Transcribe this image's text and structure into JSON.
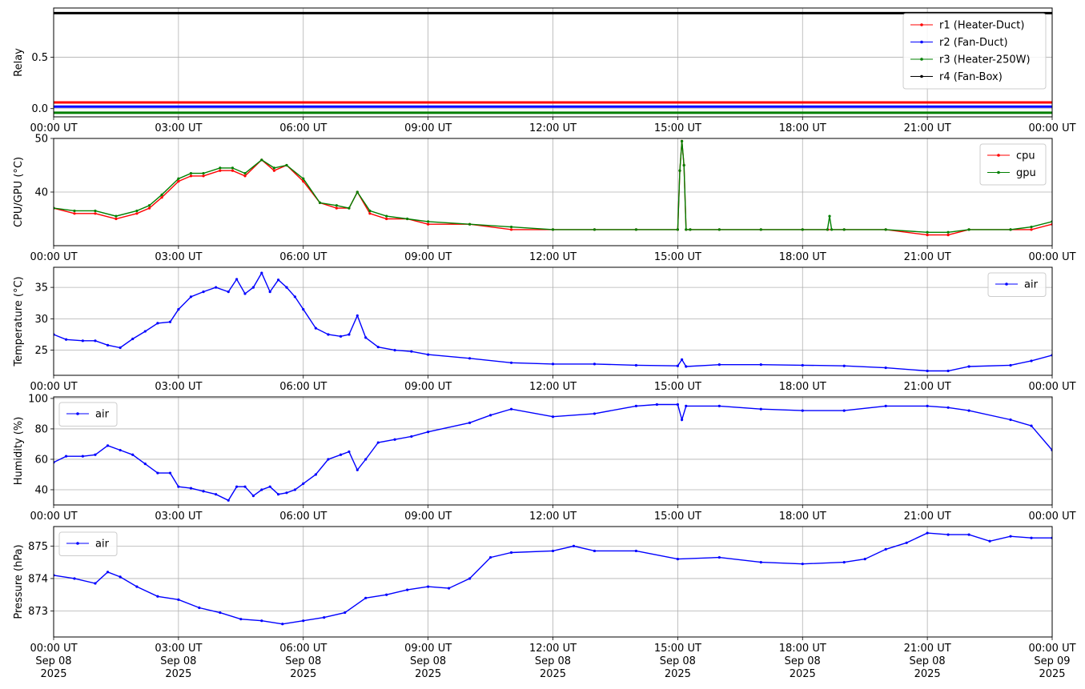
{
  "colors": {
    "red": "#ff0000",
    "blue": "#0000ff",
    "green": "#008000",
    "black": "#000000",
    "grid": "#b0b0b0"
  },
  "chart_data": [
    {
      "type": "line",
      "ylabel": "Relay",
      "ylim": [
        -0.08,
        0.98
      ],
      "yticks": [
        0.0,
        0.5
      ],
      "ytick_labels": [
        "0.0",
        "0.5"
      ],
      "grid": true,
      "legend_placement": "top-right",
      "x_ticks": [
        "00:00 UT",
        "03:00 UT",
        "06:00 UT",
        "09:00 UT",
        "12:00 UT",
        "15:00 UT",
        "18:00 UT",
        "21:00 UT",
        "00:00 UT"
      ],
      "series": [
        {
          "name": "r1 (Heater-Duct)",
          "color": "#ff0000",
          "x": [
            0,
            24
          ],
          "y": [
            0.06,
            0.06
          ]
        },
        {
          "name": "r2 (Fan-Duct)",
          "color": "#0000ff",
          "x": [
            0,
            24
          ],
          "y": [
            0.02,
            0.02
          ]
        },
        {
          "name": "r3 (Heater-250W)",
          "color": "#008000",
          "x": [
            0,
            24
          ],
          "y": [
            -0.04,
            -0.04
          ]
        },
        {
          "name": "r4 (Fan-Box)",
          "color": "#000000",
          "x": [
            0,
            24
          ],
          "y": [
            0.93,
            0.93
          ]
        }
      ]
    },
    {
      "type": "line",
      "ylabel": "CPU/GPU (°C)",
      "ylim": [
        30,
        50
      ],
      "yticks": [
        40,
        50
      ],
      "ytick_labels": [
        "40",
        "50"
      ],
      "grid": true,
      "legend_placement": "top-right",
      "x_ticks": [
        "00:00 UT",
        "03:00 UT",
        "06:00 UT",
        "09:00 UT",
        "12:00 UT",
        "15:00 UT",
        "18:00 UT",
        "21:00 UT",
        "00:00 UT"
      ],
      "series": [
        {
          "name": "cpu",
          "color": "#ff0000",
          "x": [
            0,
            0.5,
            1,
            1.5,
            2,
            2.3,
            2.6,
            3,
            3.3,
            3.6,
            4,
            4.3,
            4.6,
            5,
            5.3,
            5.6,
            6,
            6.4,
            6.8,
            7.1,
            7.3,
            7.6,
            8,
            8.5,
            9,
            10,
            11,
            12,
            13,
            14,
            15,
            15.05,
            15.1,
            15.15,
            15.2,
            15.3,
            16,
            17,
            18,
            18.6,
            19,
            20,
            21,
            21.5,
            22,
            23,
            23.5,
            24
          ],
          "y": [
            37,
            36,
            36,
            35,
            36,
            37,
            39,
            42,
            43,
            43,
            44,
            44,
            43,
            46,
            44,
            45,
            42,
            38,
            37,
            37,
            40,
            36,
            35,
            35,
            34,
            34,
            33,
            33,
            33,
            33,
            33,
            44,
            49.5,
            45,
            33,
            33,
            33,
            33,
            33,
            33,
            33,
            33,
            32,
            32,
            33,
            33,
            33,
            34
          ]
        },
        {
          "name": "gpu",
          "color": "#008000",
          "x": [
            0,
            0.5,
            1,
            1.5,
            2,
            2.3,
            2.6,
            3,
            3.3,
            3.6,
            4,
            4.3,
            4.6,
            5,
            5.3,
            5.6,
            6,
            6.4,
            6.8,
            7.1,
            7.3,
            7.6,
            8,
            8.5,
            9,
            10,
            11,
            12,
            13,
            14,
            15,
            15.05,
            15.1,
            15.15,
            15.2,
            15.3,
            16,
            17,
            18,
            18.6,
            18.65,
            18.7,
            19,
            20,
            21,
            21.5,
            22,
            23,
            23.5,
            24
          ],
          "y": [
            37,
            36.5,
            36.5,
            35.5,
            36.5,
            37.5,
            39.5,
            42.5,
            43.5,
            43.5,
            44.5,
            44.5,
            43.5,
            46,
            44.5,
            45,
            42.5,
            38,
            37.5,
            37,
            40,
            36.5,
            35.5,
            35,
            34.5,
            34,
            33.5,
            33,
            33,
            33,
            33,
            44,
            49.5,
            45,
            33,
            33,
            33,
            33,
            33,
            33,
            35.5,
            33,
            33,
            33,
            32.5,
            32.5,
            33,
            33,
            33.5,
            34.5
          ]
        }
      ]
    },
    {
      "type": "line",
      "ylabel": "Temperature (°C)",
      "ylim": [
        21,
        38.2
      ],
      "yticks": [
        25,
        30,
        35
      ],
      "ytick_labels": [
        "25",
        "30",
        "35"
      ],
      "grid": true,
      "legend_placement": "top-right",
      "x_ticks": [
        "00:00 UT",
        "03:00 UT",
        "06:00 UT",
        "09:00 UT",
        "12:00 UT",
        "15:00 UT",
        "18:00 UT",
        "21:00 UT",
        "00:00 UT"
      ],
      "series": [
        {
          "name": "air",
          "color": "#0000ff",
          "x": [
            0,
            0.3,
            0.7,
            1,
            1.3,
            1.6,
            1.9,
            2.2,
            2.5,
            2.8,
            3,
            3.3,
            3.6,
            3.9,
            4.2,
            4.4,
            4.6,
            4.8,
            5,
            5.2,
            5.4,
            5.6,
            5.8,
            6,
            6.3,
            6.6,
            6.9,
            7.1,
            7.3,
            7.5,
            7.8,
            8.2,
            8.6,
            9,
            10,
            11,
            12,
            13,
            14,
            15,
            15.1,
            15.2,
            16,
            17,
            18,
            19,
            20,
            21,
            21.5,
            22,
            23,
            23.5,
            24
          ],
          "y": [
            27.5,
            26.7,
            26.5,
            26.5,
            25.8,
            25.4,
            26.8,
            28,
            29.3,
            29.5,
            31.5,
            33.5,
            34.3,
            35,
            34.3,
            36.3,
            34,
            35,
            37.3,
            34.3,
            36.2,
            35,
            33.5,
            31.5,
            28.5,
            27.5,
            27.2,
            27.5,
            30.5,
            27,
            25.5,
            25,
            24.8,
            24.3,
            23.7,
            23,
            22.8,
            22.8,
            22.6,
            22.5,
            23.5,
            22.4,
            22.7,
            22.7,
            22.6,
            22.5,
            22.2,
            21.7,
            21.7,
            22.4,
            22.6,
            23.3,
            24.2
          ]
        }
      ]
    },
    {
      "type": "line",
      "ylabel": "Humidity (%)",
      "ylim": [
        30,
        101
      ],
      "yticks": [
        40,
        60,
        80,
        100
      ],
      "ytick_labels": [
        "40",
        "60",
        "80",
        "100"
      ],
      "grid": true,
      "legend_placement": "top-left",
      "x_ticks": [
        "00:00 UT",
        "03:00 UT",
        "06:00 UT",
        "09:00 UT",
        "12:00 UT",
        "15:00 UT",
        "18:00 UT",
        "21:00 UT",
        "00:00 UT"
      ],
      "series": [
        {
          "name": "air",
          "color": "#0000ff",
          "x": [
            0,
            0.3,
            0.7,
            1,
            1.3,
            1.6,
            1.9,
            2.2,
            2.5,
            2.8,
            3,
            3.3,
            3.6,
            3.9,
            4.2,
            4.4,
            4.6,
            4.8,
            5,
            5.2,
            5.4,
            5.6,
            5.8,
            6,
            6.3,
            6.6,
            6.9,
            7.1,
            7.3,
            7.5,
            7.8,
            8.2,
            8.6,
            9,
            10,
            10.5,
            11,
            12,
            13,
            14,
            14.5,
            15,
            15.1,
            15.2,
            16,
            17,
            18,
            19,
            20,
            21,
            21.5,
            22,
            23,
            23.5,
            24
          ],
          "y": [
            58,
            62,
            62,
            63,
            69,
            66,
            63,
            57,
            51,
            51,
            42,
            41,
            39,
            37,
            33,
            42,
            42,
            36,
            40,
            42,
            37,
            38,
            40,
            44,
            50,
            60,
            63,
            65,
            53,
            60,
            71,
            73,
            75,
            78,
            84,
            89,
            93,
            88,
            90,
            95,
            96,
            96,
            86,
            95,
            95,
            93,
            92,
            92,
            95,
            95,
            94,
            92,
            86,
            82,
            66
          ]
        }
      ]
    },
    {
      "type": "line",
      "ylabel": "Pressure (hPa)",
      "ylim": [
        872.2,
        875.6
      ],
      "yticks": [
        873,
        874,
        875
      ],
      "ytick_labels": [
        "873",
        "874",
        "875"
      ],
      "grid": true,
      "legend_placement": "top-left",
      "x_ticks": [
        "00:00 UT\nSep 08\n2025",
        "03:00 UT\nSep 08\n2025",
        "06:00 UT\nSep 08\n2025",
        "09:00 UT\nSep 08\n2025",
        "12:00 UT\nSep 08\n2025",
        "15:00 UT\nSep 08\n2025",
        "18:00 UT\nSep 08\n2025",
        "21:00 UT\nSep 08\n2025",
        "00:00 UT\nSep 09\n2025"
      ],
      "series": [
        {
          "name": "air",
          "color": "#0000ff",
          "x": [
            0,
            0.5,
            1,
            1.3,
            1.6,
            2,
            2.5,
            3,
            3.5,
            4,
            4.5,
            5,
            5.5,
            6,
            6.5,
            7,
            7.5,
            8,
            8.5,
            9,
            9.5,
            10,
            10.5,
            11,
            12,
            12.5,
            13,
            14,
            15,
            16,
            17,
            18,
            19,
            19.5,
            20,
            20.5,
            21,
            21.5,
            22,
            22.5,
            23,
            23.5,
            24
          ],
          "y": [
            874.1,
            874.0,
            873.85,
            874.2,
            874.05,
            873.75,
            873.45,
            873.35,
            873.1,
            872.95,
            872.75,
            872.7,
            872.6,
            872.7,
            872.8,
            872.95,
            873.4,
            873.5,
            873.65,
            873.75,
            873.7,
            874.0,
            874.65,
            874.8,
            874.85,
            875.0,
            874.85,
            874.85,
            874.6,
            874.65,
            874.5,
            874.45,
            874.5,
            874.6,
            874.9,
            875.1,
            875.4,
            875.35,
            875.35,
            875.15,
            875.3,
            875.25,
            875.25
          ]
        }
      ]
    }
  ]
}
